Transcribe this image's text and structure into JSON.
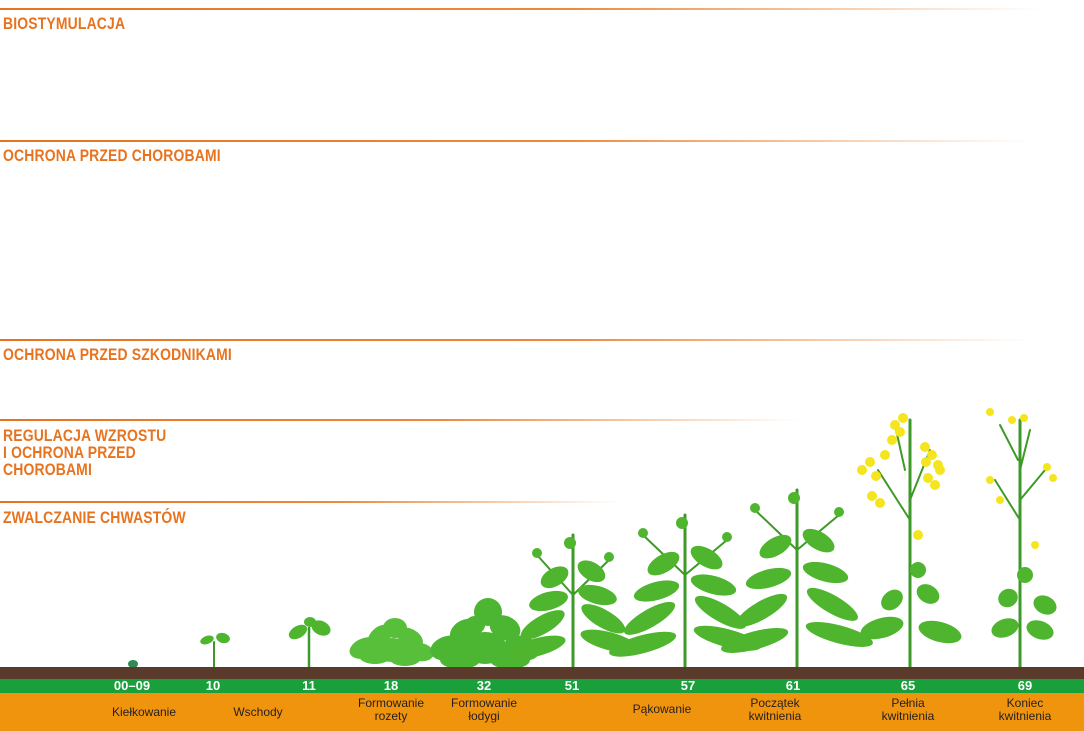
{
  "sections": [
    {
      "key": "bio",
      "title_lines": [
        "BIOSTYMULACJA"
      ]
    },
    {
      "key": "disease",
      "title_lines": [
        "OCHRONA PRZED CHOROBAMI"
      ]
    },
    {
      "key": "pests",
      "title_lines": [
        "OCHRONA PRZED SZKODNIKAMI"
      ]
    },
    {
      "key": "growth",
      "title_lines": [
        "REGULACJA WZROSTU",
        "I OCHRONA PRZED",
        "CHOROBAMI"
      ]
    },
    {
      "key": "weeds",
      "title_lines": [
        "ZWALCZANIE CHWASTÓW"
      ]
    }
  ],
  "stages": [
    {
      "code": "00–09",
      "name_lines": [
        "Kiełkowanie"
      ]
    },
    {
      "code": "10",
      "name_lines": [
        "Wschody"
      ]
    },
    {
      "code": "11",
      "name_lines": []
    },
    {
      "code": "18",
      "name_lines": [
        "Formowanie",
        "rozety"
      ]
    },
    {
      "code": "32",
      "name_lines": [
        "Formowanie",
        "łodygi"
      ]
    },
    {
      "code": "51",
      "name_lines": []
    },
    {
      "code": "57",
      "name_lines": [
        "Pąkowanie"
      ]
    },
    {
      "code": "61",
      "name_lines": [
        "Początek",
        "kwitnienia"
      ]
    },
    {
      "code": "65",
      "name_lines": [
        "Pełnia",
        "kwitnienia"
      ]
    },
    {
      "code": "69",
      "name_lines": [
        "Koniec",
        "kwitnienia"
      ]
    }
  ],
  "colors": {
    "accent": "#e8731f",
    "green_bar": "#19a03a",
    "orange_bar": "#f0940e",
    "soil": "#5a3a2a",
    "leaf": "#4fb52e",
    "flower": "#f5e51e"
  }
}
